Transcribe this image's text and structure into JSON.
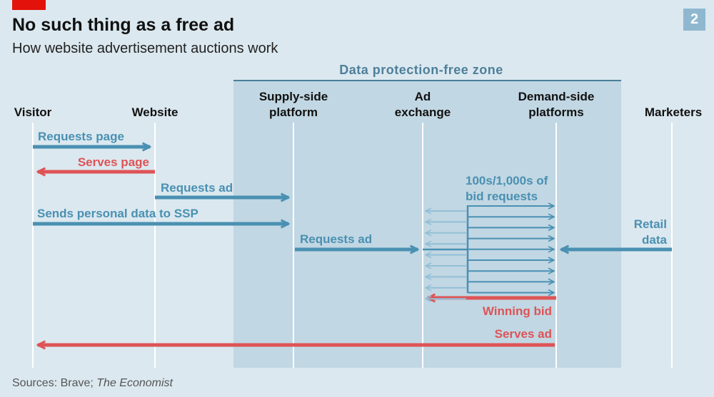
{
  "header": {
    "title": "No such thing as a free ad",
    "subtitle": "How website advertisement auctions work",
    "chart_number": "2"
  },
  "zone": {
    "label": "Data protection-free zone"
  },
  "actors": {
    "visitor": "Visitor",
    "website": "Website",
    "ssp_line1": "Supply-side",
    "ssp_line2": "platform",
    "adx_line1": "Ad",
    "adx_line2": "exchange",
    "dsp_line1": "Demand-side",
    "dsp_line2": "platforms",
    "marketers": "Marketers"
  },
  "flows": {
    "requests_page": "Requests page",
    "serves_page": "Serves page",
    "requests_ad_1": "Requests ad",
    "sends_personal_data": "Sends personal data to SSP",
    "requests_ad_2": "Requests ad",
    "bid_requests_line1": "100s/1,000s of",
    "bid_requests_line2": "bid requests",
    "retail_data_line1": "Retail",
    "retail_data_line2": "data",
    "winning_bid": "Winning bid",
    "serves_ad": "Serves ad"
  },
  "source": {
    "prefix": "Sources: Brave; ",
    "publication": "The Economist"
  },
  "colors": {
    "background": "#dbe8ef",
    "zone": "#c1d7e3",
    "blue": "#4a90b2",
    "light_blue": "#93bfd6",
    "red": "#de5356",
    "brand_red": "#e3120b"
  }
}
